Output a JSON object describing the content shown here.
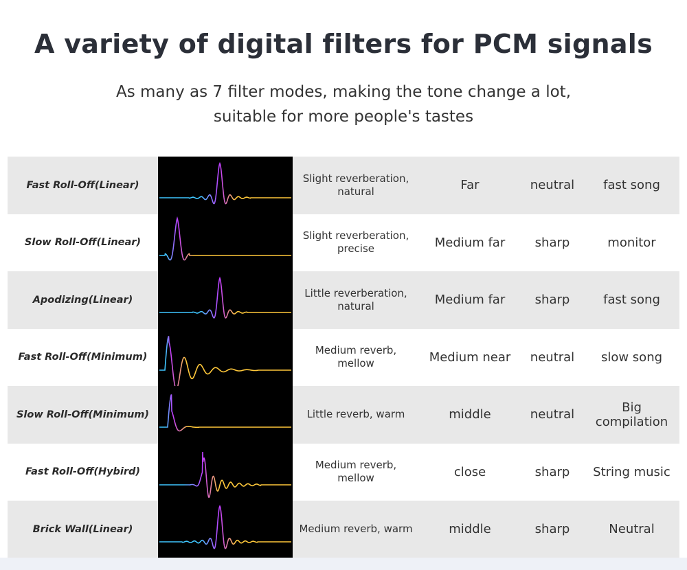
{
  "header": {
    "title": "A variety of digital filters for PCM signals",
    "subtitle_line1": "As many as 7 filter modes, making the tone change a lot,",
    "subtitle_line2": "suitable for more people's tastes"
  },
  "colors": {
    "row_shade": "#e8e8e8",
    "wave_bg": "#000000",
    "wave_cyan": "#3fc6ff",
    "wave_purple": "#c23cff",
    "wave_yellow": "#ffc83a"
  },
  "filters": [
    {
      "name": "Fast Roll-Off(Linear)",
      "desc": "Slight reverberation, natural",
      "distance": "Far",
      "tone": "neutral",
      "genre": "fast song",
      "wave": "linear-fast"
    },
    {
      "name": "Slow Roll-Off(Linear)",
      "desc": "Slight reverberation, precise",
      "distance": "Medium far",
      "tone": "sharp",
      "genre": "monitor",
      "wave": "linear-slow"
    },
    {
      "name": "Apodizing(Linear)",
      "desc": "Little reverberation, natural",
      "distance": "Medium far",
      "tone": "sharp",
      "genre": "fast song",
      "wave": "apodizing"
    },
    {
      "name": "Fast Roll-Off(Minimum)",
      "desc": "Medium reverb, mellow",
      "distance": "Medium near",
      "tone": "neutral",
      "genre": "slow song",
      "wave": "minimum-fast"
    },
    {
      "name": "Slow Roll-Off(Minimum)",
      "desc": "Little reverb, warm",
      "distance": "middle",
      "tone": "neutral",
      "genre": "Big compilation",
      "wave": "minimum-slow"
    },
    {
      "name": "Fast Roll-Off(Hybird)",
      "desc": "Medium reverb, mellow",
      "distance": "close",
      "tone": "sharp",
      "genre": "String music",
      "wave": "hybrid"
    },
    {
      "name": "Brick Wall(Linear)",
      "desc": "Medium reverb, warm",
      "distance": "middle",
      "tone": "sharp",
      "genre": "Neutral",
      "wave": "brickwall"
    }
  ]
}
